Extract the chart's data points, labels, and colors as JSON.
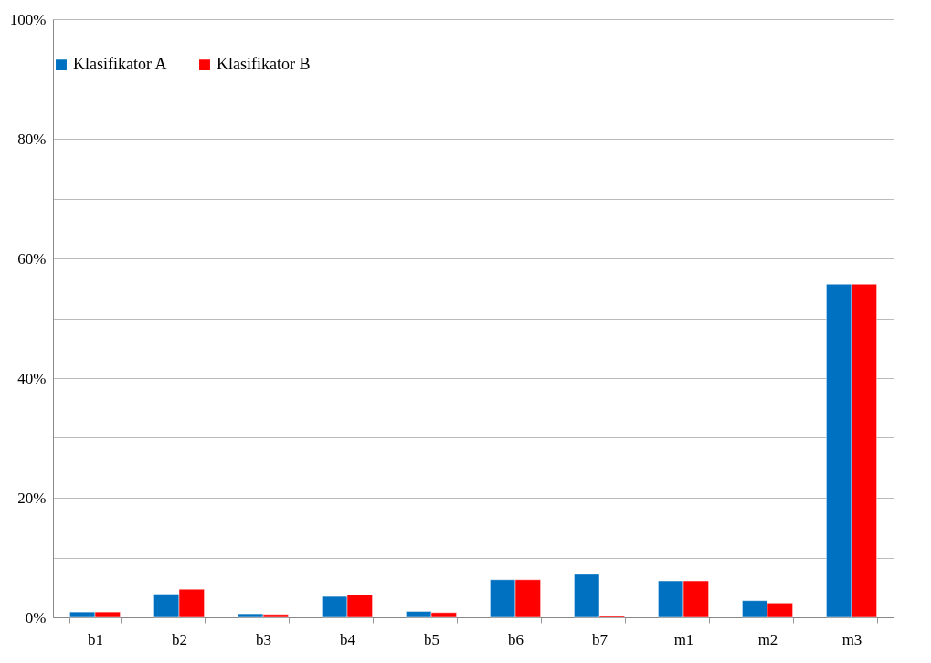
{
  "chart_data": {
    "type": "bar",
    "categories": [
      "b1",
      "b2",
      "b3",
      "b4",
      "b5",
      "b6",
      "b7",
      "m1",
      "m2",
      "m3"
    ],
    "series": [
      {
        "name": "Klasifikator A",
        "color": "#0070c0",
        "values": [
          0.9,
          3.9,
          0.6,
          3.5,
          1.0,
          6.3,
          7.2,
          6.1,
          2.8,
          55.7
        ]
      },
      {
        "name": "Klasifikator B",
        "color": "#ff0000",
        "values": [
          0.9,
          4.7,
          0.5,
          3.8,
          0.8,
          6.3,
          0.3,
          6.1,
          2.4,
          55.7
        ]
      }
    ],
    "ylim": [
      0,
      100
    ],
    "yticks": [
      {
        "value": 0,
        "label": "0%"
      },
      {
        "value": 10,
        "label": null
      },
      {
        "value": 20,
        "label": "20%"
      },
      {
        "value": 30,
        "label": null
      },
      {
        "value": 40,
        "label": "40%"
      },
      {
        "value": 50,
        "label": null
      },
      {
        "value": 60,
        "label": "60%"
      },
      {
        "value": 70,
        "label": null
      },
      {
        "value": 80,
        "label": "80%"
      },
      {
        "value": 90,
        "label": null
      },
      {
        "value": 100,
        "label": "100%"
      }
    ],
    "grid": "y",
    "legend": "top"
  }
}
